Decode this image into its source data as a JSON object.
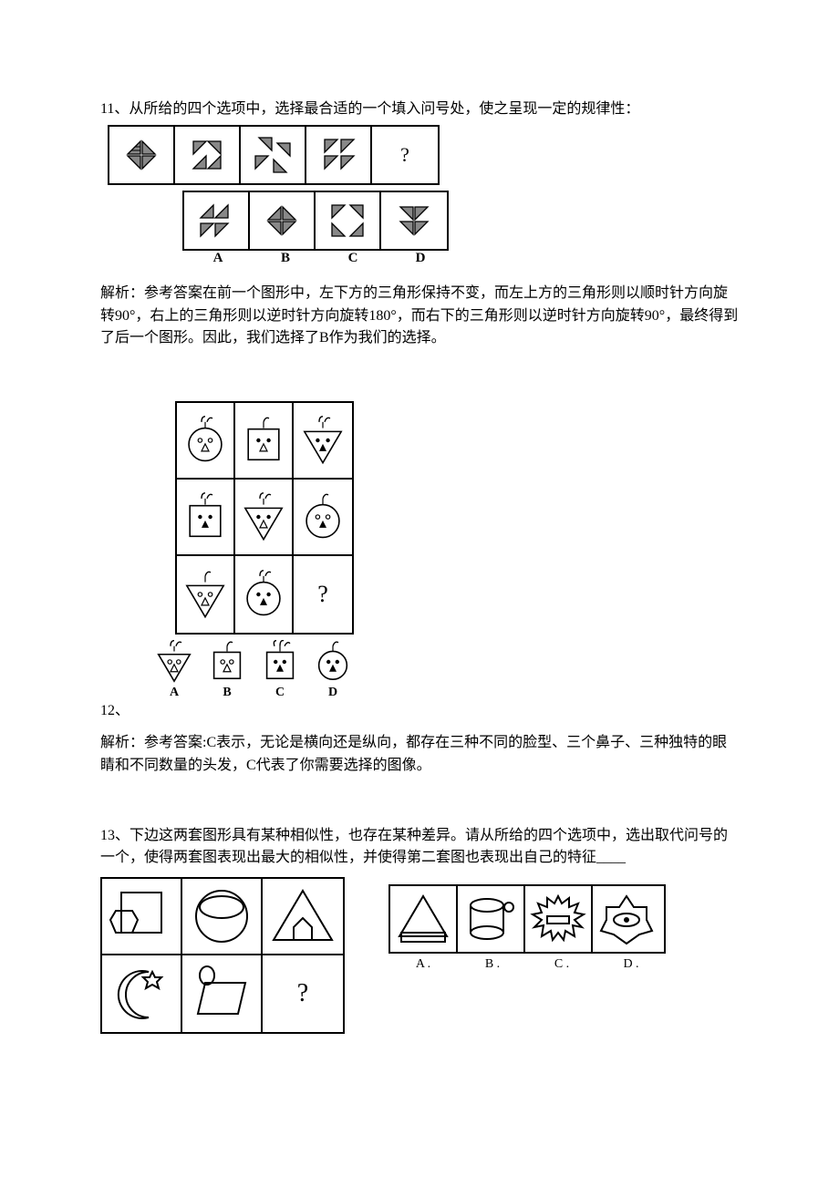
{
  "q11": {
    "number": "11、",
    "stem": "从所给的四个选项中，选择最合适的一个填入问号处，使之呈现一定的规律性：",
    "options": [
      "A",
      "B",
      "C",
      "D"
    ],
    "qmark": "?",
    "explanation_label": "解析：",
    "explanation": "参考答案在前一个图形中，左下方的三角形保持不变，而左上方的三角形则以顺时针方向旋转90°，右上的三角形则以逆时针方向旋转180°，而右下的三角形则以逆时针方向旋转90°，最终得到了后一个图形。因此，我们选择了B作为我们的选择。",
    "fill": "#777777",
    "stroke": "#000000"
  },
  "q12": {
    "number": "12、",
    "options": [
      "A",
      "B",
      "C",
      "D"
    ],
    "qmark": "?",
    "explanation_label": "解析：",
    "explanation": "参考答案:C表示，无论是横向还是纵向，都存在三种不同的脸型、三个鼻子、三种独特的眼睛和不同数量的头发，C代表了你需要选择的图像。",
    "stroke": "#000000",
    "fill": "#000000",
    "grid": [
      [
        {
          "shape": "circle",
          "eyes": "open",
          "nose": "open",
          "hair": 2
        },
        {
          "shape": "square",
          "eyes": "solid",
          "nose": "open",
          "hair": 1
        },
        {
          "shape": "triangle",
          "eyes": "solid",
          "nose": "solid",
          "hair": 2
        }
      ],
      [
        {
          "shape": "square",
          "eyes": "solid",
          "nose": "solid",
          "hair": 2
        },
        {
          "shape": "triangle",
          "eyes": "solid",
          "nose": "open",
          "hair": 2
        },
        {
          "shape": "circle",
          "eyes": "open",
          "nose": "solid",
          "hair": 1
        }
      ],
      [
        {
          "shape": "triangle",
          "eyes": "open",
          "nose": "open",
          "hair": 1
        },
        {
          "shape": "circle",
          "eyes": "solid",
          "nose": "solid",
          "hair": 2
        },
        {
          "q": true
        }
      ]
    ],
    "opts": [
      {
        "shape": "triangle",
        "eyes": "open",
        "nose": "open",
        "hair": 2
      },
      {
        "shape": "square",
        "eyes": "open",
        "nose": "open",
        "hair": 1
      },
      {
        "shape": "square",
        "eyes": "solid",
        "nose": "solid",
        "hair": 3
      },
      {
        "shape": "circle",
        "eyes": "solid",
        "nose": "solid",
        "hair": 1
      }
    ]
  },
  "q13": {
    "number": "13、",
    "stem": "下边这两套图形具有某种相似性，也存在某种差异。请从所给的四个选项中，选出取代问号的一个，使得两套图表现出最大的相似性，并使得第二套图也表现出自己的特征____",
    "options": [
      "A .",
      "B .",
      "C .",
      "D ."
    ],
    "qmark": "?",
    "stroke": "#000000"
  }
}
